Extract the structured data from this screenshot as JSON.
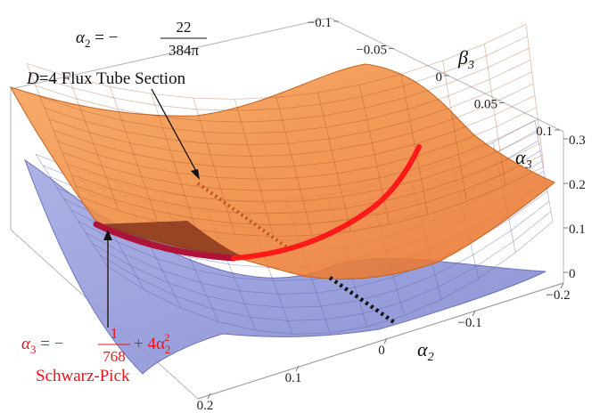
{
  "chart_data": {
    "type": "surface3d",
    "axes": {
      "x": {
        "name": "α",
        "sub": "2",
        "ticks": [
          "0.2",
          "0.1",
          "0",
          "−0.1",
          "−0.2"
        ]
      },
      "y": {
        "name": "β",
        "sub": "3",
        "ticks": [
          "−0.1",
          "−0.05",
          "0",
          "0.05",
          "0.1"
        ]
      },
      "z": {
        "name": "α",
        "sub": "3",
        "ticks": [
          "0",
          "0.1",
          "0.2",
          "0.3"
        ]
      }
    },
    "surfaces": [
      {
        "id": "orange",
        "color": "#f28a3c"
      },
      {
        "id": "blue",
        "color": "#8e94d8"
      }
    ],
    "curves": [
      {
        "id": "schwarz-pick-curve",
        "color": "#ff1a1a"
      },
      {
        "id": "section-line",
        "color": "#111111",
        "style": "dotted"
      }
    ],
    "annotations": {
      "top_formula": {
        "lhs": "α",
        "lhs_sub": "2",
        "eq": " = −",
        "num": "22",
        "den": "384π"
      },
      "section_label": {
        "d": "D",
        "rest": "=4 Flux Tube Section"
      },
      "red_formula": {
        "lhs": "α",
        "lhs_sub": "3",
        "eq": " = −",
        "num": "1",
        "den": "768",
        "plus": " + 4α",
        "plus_sub": "2",
        "plus_sup": "2"
      },
      "red_label": "Schwarz-Pick"
    }
  }
}
